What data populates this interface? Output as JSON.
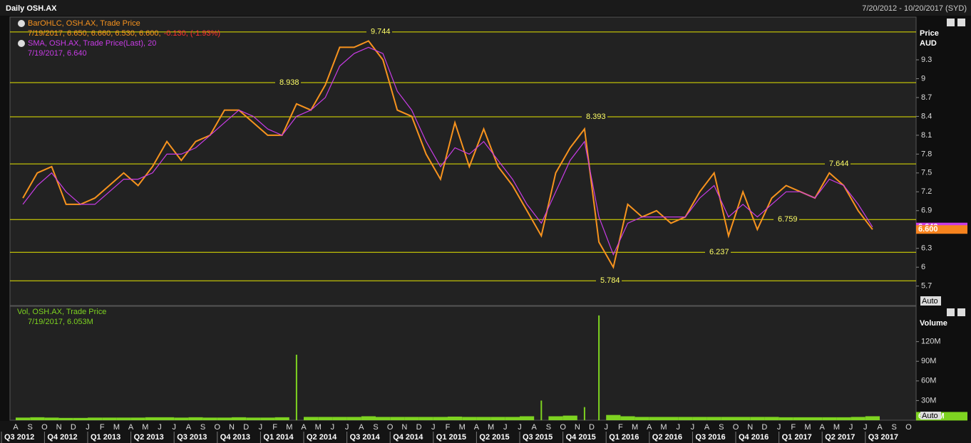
{
  "header": {
    "title": "Daily OSH.AX",
    "range": "7/20/2012 - 10/20/2017 (SYD)"
  },
  "chart_data": [
    {
      "type": "line",
      "ylabel": "Price",
      "yunit": "AUD",
      "categories": [
        "A",
        "S",
        "O",
        "N",
        "D",
        "J",
        "F",
        "M",
        "A",
        "M",
        "J",
        "J",
        "A",
        "S",
        "O",
        "N",
        "D",
        "J",
        "F",
        "M",
        "A",
        "M",
        "J",
        "J",
        "A",
        "S",
        "O",
        "N",
        "D",
        "J",
        "F",
        "M",
        "A",
        "M",
        "J",
        "J",
        "A",
        "S",
        "O",
        "N",
        "D",
        "J",
        "F",
        "M",
        "A",
        "M",
        "J",
        "J",
        "A",
        "S",
        "O",
        "N",
        "D",
        "J",
        "F",
        "M",
        "A",
        "M",
        "J",
        "J",
        "A",
        "S",
        "O"
      ],
      "quarters": [
        "Q3 2012",
        "Q4 2012",
        "Q1 2013",
        "Q2 2013",
        "Q3 2013",
        "Q4 2013",
        "Q1 2014",
        "Q2 2014",
        "Q3 2014",
        "Q4 2014",
        "Q1 2015",
        "Q2 2015",
        "Q3 2015",
        "Q4 2015",
        "Q1 2016",
        "Q2 2016",
        "Q3 2016",
        "Q4 2016",
        "Q1 2017",
        "Q2 2017",
        "Q3 2017"
      ],
      "series": [
        {
          "name": "BarOHLC, OSH.AX, Trade Price",
          "color": "#f7931e",
          "readout": "7/19/2017, 6.650, 6.660, 6.530, 6.600,",
          "change": "-0.130, (-1.93%)",
          "values": [
            7.1,
            7.5,
            7.6,
            7.0,
            7.0,
            7.1,
            7.3,
            7.5,
            7.3,
            7.6,
            8.0,
            7.7,
            8.0,
            8.1,
            8.5,
            8.5,
            8.3,
            8.1,
            8.1,
            8.6,
            8.5,
            8.9,
            9.5,
            9.5,
            9.6,
            9.3,
            8.5,
            8.4,
            7.8,
            7.4,
            8.3,
            7.6,
            8.2,
            7.6,
            7.3,
            6.9,
            6.5,
            7.5,
            7.9,
            8.2,
            6.4,
            6.0,
            7.0,
            6.8,
            6.9,
            6.7,
            6.8,
            7.2,
            7.5,
            6.5,
            7.2,
            6.6,
            7.1,
            7.3,
            7.2,
            7.1,
            7.5,
            7.3,
            6.9,
            6.6,
            null,
            null,
            null
          ]
        },
        {
          "name": "SMA, OSH.AX, Trade Price(Last), 20",
          "color": "#c83ce6",
          "readout": "7/19/2017, 6.640",
          "values": [
            7.0,
            7.3,
            7.5,
            7.2,
            7.0,
            7.0,
            7.2,
            7.4,
            7.4,
            7.5,
            7.8,
            7.8,
            7.9,
            8.1,
            8.3,
            8.5,
            8.4,
            8.2,
            8.1,
            8.4,
            8.5,
            8.7,
            9.2,
            9.4,
            9.5,
            9.4,
            8.8,
            8.5,
            8.0,
            7.6,
            7.9,
            7.8,
            8.0,
            7.7,
            7.4,
            7.0,
            6.7,
            7.2,
            7.7,
            8.0,
            6.8,
            6.2,
            6.7,
            6.8,
            6.8,
            6.8,
            6.8,
            7.1,
            7.3,
            6.8,
            7.0,
            6.8,
            7.0,
            7.2,
            7.2,
            7.1,
            7.4,
            7.3,
            7.0,
            6.64,
            null,
            null,
            null
          ]
        }
      ],
      "ylim": [
        5.39,
        9.98
      ],
      "yticks": [
        5.7,
        6,
        6.3,
        6.9,
        7.2,
        7.5,
        7.8,
        8.1,
        8.4,
        8.7,
        9,
        9.3
      ],
      "levels": [
        9.744,
        8.938,
        8.393,
        7.644,
        6.759,
        6.237,
        5.784
      ],
      "last_tags": [
        {
          "value": 6.64,
          "label": "6.640",
          "color": "#c83ce6"
        },
        {
          "value": 6.6,
          "label": "6.600",
          "color": "#f7831e"
        }
      ],
      "button": "Auto"
    },
    {
      "type": "bar",
      "ylabel": "Volume",
      "series": [
        {
          "name": "Vol, OSH.AX, Trade Price",
          "color": "#7ed321",
          "readout": "7/19/2017, 6.053M",
          "values": [
            4000000,
            4500000,
            4000000,
            3500000,
            3500000,
            4000000,
            4000000,
            4000000,
            4000000,
            4500000,
            4500000,
            4000000,
            4500000,
            4000000,
            4000000,
            4500000,
            4000000,
            4000000,
            4500000,
            100000000,
            5000000,
            5000000,
            5000000,
            5000000,
            6000000,
            5000000,
            5000000,
            5000000,
            5000000,
            5000000,
            5500000,
            5000000,
            5000000,
            5000000,
            5000000,
            6000000,
            30000000,
            6000000,
            7000000,
            20000000,
            160000000,
            8000000,
            6000000,
            5000000,
            5000000,
            5000000,
            5000000,
            5000000,
            5000000,
            5000000,
            5000000,
            5000000,
            5000000,
            4500000,
            4500000,
            4500000,
            4500000,
            4500000,
            5000000,
            6053000,
            null,
            null,
            null
          ]
        }
      ],
      "ylim": [
        0,
        174000000
      ],
      "yticks": [
        {
          "value": 30000000,
          "label": "30M"
        },
        {
          "value": 60000000,
          "label": "60M"
        },
        {
          "value": 90000000,
          "label": "90M"
        },
        {
          "value": 120000000,
          "label": "120M"
        }
      ],
      "last_tag": {
        "value": 6053000,
        "label": "6.053M",
        "color": "#7ed321"
      },
      "button": "Auto"
    }
  ]
}
